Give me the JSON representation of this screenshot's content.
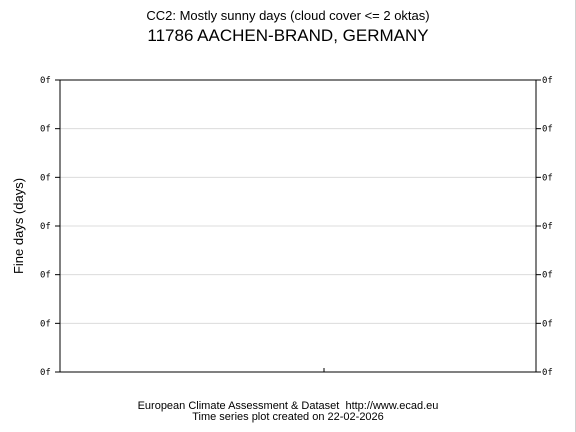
{
  "chart_data": {
    "type": "line",
    "title": "CC2: Mostly sunny days (cloud cover <= 2 oktas)",
    "subtitle": "11786 AACHEN-BRAND, GERMANY",
    "xlabel": "",
    "ylabel": "Fine days (days)",
    "y_tick_labels": [
      "0f",
      "0f",
      "0f",
      "0f",
      "0f",
      "0f",
      "0f"
    ],
    "series": [],
    "grid": true
  },
  "footer": {
    "source": "European Climate Assessment & Dataset  http://www.ecad.eu",
    "created": "Time series plot created on 22-02-2026"
  },
  "colors": {
    "gridline": "#dcdcdc",
    "frame": "#000000",
    "background": "#ffffff"
  }
}
